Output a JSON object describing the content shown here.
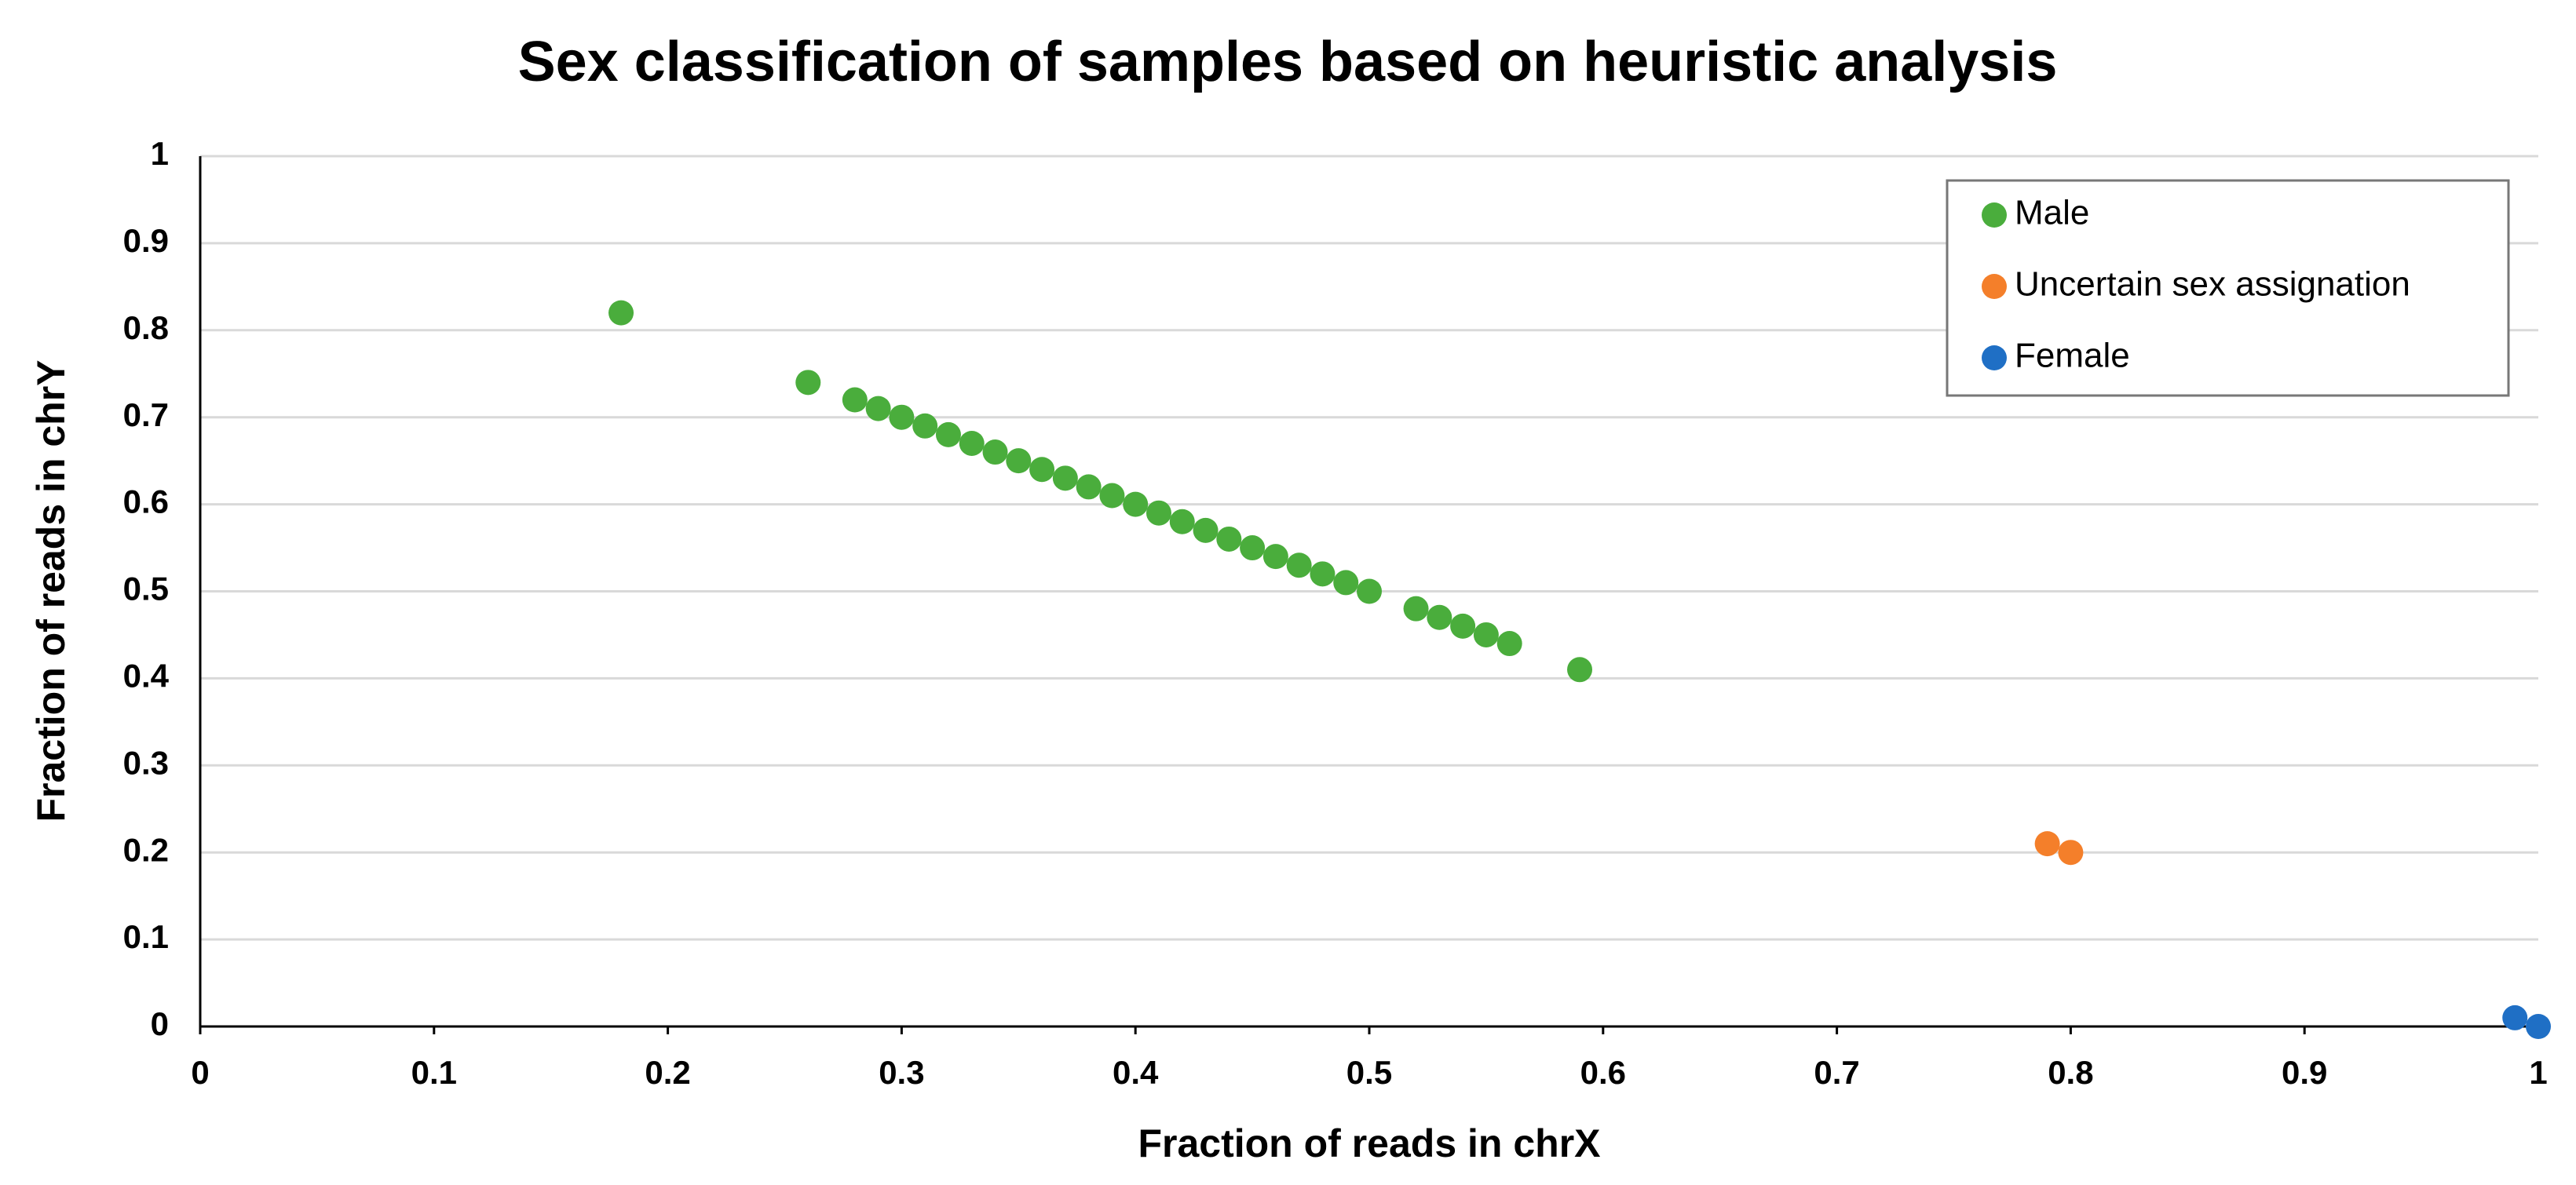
{
  "chart_data": {
    "type": "scatter",
    "title": "Sex classification of samples based on heuristic analysis",
    "x_label": "Fraction of reads in chrX",
    "y_label": "Fraction of reads in chrY",
    "xlim": [
      0,
      1
    ],
    "ylim": [
      0,
      1
    ],
    "xticks": [
      0,
      0.1,
      0.2,
      0.3,
      0.4,
      0.5,
      0.6,
      0.7,
      0.8,
      0.9,
      1
    ],
    "yticks": [
      0,
      0.1,
      0.2,
      0.3,
      0.4,
      0.5,
      0.6,
      0.7,
      0.8,
      0.9,
      1
    ],
    "grid": true,
    "legend": "upper right",
    "series": [
      {
        "name": "Male",
        "color": "#4aad3c",
        "x": [
          0.18,
          0.26,
          0.28,
          0.29,
          0.3,
          0.31,
          0.32,
          0.33,
          0.34,
          0.35,
          0.36,
          0.37,
          0.38,
          0.39,
          0.4,
          0.41,
          0.42,
          0.43,
          0.44,
          0.45,
          0.46,
          0.47,
          0.48,
          0.49,
          0.5,
          0.52,
          0.53,
          0.54,
          0.55,
          0.56,
          0.59
        ],
        "values": [
          0.82,
          0.74,
          0.72,
          0.71,
          0.7,
          0.69,
          0.68,
          0.67,
          0.66,
          0.65,
          0.64,
          0.63,
          0.62,
          0.61,
          0.6,
          0.59,
          0.58,
          0.57,
          0.56,
          0.55,
          0.54,
          0.53,
          0.52,
          0.51,
          0.5,
          0.48,
          0.47,
          0.46,
          0.45,
          0.44,
          0.41
        ]
      },
      {
        "name": "Uncertain sex assignation",
        "color": "#f47f2a",
        "x": [
          0.79,
          0.8
        ],
        "values": [
          0.21,
          0.2
        ]
      },
      {
        "name": "Female",
        "color": "#1f6fc5",
        "x": [
          0.99,
          1.0
        ],
        "values": [
          0.01,
          0.0
        ]
      }
    ]
  }
}
